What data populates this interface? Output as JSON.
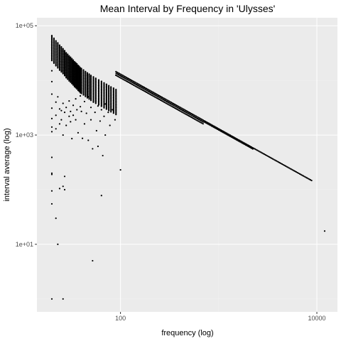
{
  "chart_data": {
    "type": "scatter",
    "title": "Mean Interval by Frequency in 'Ulysses'",
    "xlabel": "frequency (log)",
    "ylabel": "interval average (log)",
    "xscale": "log10",
    "yscale": "log10",
    "xlim": [
      14.1,
      16200
    ],
    "ylim": [
      0.58,
      140000
    ],
    "x_ticks": [
      {
        "value": 100,
        "label": "100"
      },
      {
        "value": 10000,
        "label": "10000"
      }
    ],
    "y_ticks": [
      {
        "value": 10,
        "label": "1e+01"
      },
      {
        "value": 1000,
        "label": "1e+03"
      },
      {
        "value": 100000,
        "label": "1e+05"
      }
    ],
    "grid": true,
    "legend": "none",
    "point_color": "#000000",
    "panel_color": "#EBEBEB",
    "frequency_columns": {
      "x": [
        20,
        21,
        22,
        23,
        24,
        25,
        26,
        27,
        28,
        29,
        30,
        31,
        32,
        33,
        34,
        35,
        36,
        37,
        38,
        39,
        40,
        42,
        44,
        46,
        48,
        50,
        53,
        56,
        60,
        64,
        68,
        72,
        76,
        80,
        85,
        90
      ],
      "ymax": [
        66000,
        59000,
        53000,
        48500,
        44000,
        41000,
        38000,
        35000,
        32000,
        30000,
        28000,
        26500,
        25000,
        23500,
        22000,
        21000,
        20000,
        18800,
        18000,
        17000,
        16500,
        15500,
        14500,
        13700,
        13000,
        12300,
        11600,
        10900,
        10200,
        9600,
        9000,
        8500,
        8000,
        7600,
        7200,
        6800
      ]
    },
    "points": [
      {
        "x": 20,
        "y": 1150
      },
      {
        "x": 20,
        "y": 1400
      },
      {
        "x": 20,
        "y": 2000
      },
      {
        "x": 20,
        "y": 3100
      },
      {
        "x": 20,
        "y": 5600
      },
      {
        "x": 20,
        "y": 9500
      },
      {
        "x": 20,
        "y": 15000
      },
      {
        "x": 20,
        "y": 390
      },
      {
        "x": 20,
        "y": 200
      },
      {
        "x": 20,
        "y": 190
      },
      {
        "x": 20,
        "y": 95
      },
      {
        "x": 20,
        "y": 55
      },
      {
        "x": 20,
        "y": 1
      },
      {
        "x": 22,
        "y": 1300
      },
      {
        "x": 22,
        "y": 2300
      },
      {
        "x": 22,
        "y": 4000
      },
      {
        "x": 22,
        "y": 30
      },
      {
        "x": 23,
        "y": 10
      },
      {
        "x": 23,
        "y": 5000
      },
      {
        "x": 24,
        "y": 1600
      },
      {
        "x": 24,
        "y": 3000
      },
      {
        "x": 24,
        "y": 105
      },
      {
        "x": 25,
        "y": 2800
      },
      {
        "x": 25,
        "y": 1900
      },
      {
        "x": 26,
        "y": 1000
      },
      {
        "x": 26,
        "y": 3800
      },
      {
        "x": 26,
        "y": 115
      },
      {
        "x": 26,
        "y": 1
      },
      {
        "x": 27,
        "y": 2600
      },
      {
        "x": 27,
        "y": 175
      },
      {
        "x": 27,
        "y": 100
      },
      {
        "x": 28,
        "y": 1500
      },
      {
        "x": 28,
        "y": 3200
      },
      {
        "x": 30,
        "y": 2200
      },
      {
        "x": 30,
        "y": 4200
      },
      {
        "x": 31,
        "y": 2700
      },
      {
        "x": 31,
        "y": 1750
      },
      {
        "x": 32,
        "y": 860
      },
      {
        "x": 33,
        "y": 3500
      },
      {
        "x": 33,
        "y": 2300
      },
      {
        "x": 35,
        "y": 1900
      },
      {
        "x": 35,
        "y": 4600
      },
      {
        "x": 36,
        "y": 2900
      },
      {
        "x": 37,
        "y": 1100
      },
      {
        "x": 39,
        "y": 3300
      },
      {
        "x": 39,
        "y": 5200
      },
      {
        "x": 40,
        "y": 2700
      },
      {
        "x": 41,
        "y": 870
      },
      {
        "x": 43,
        "y": 1600
      },
      {
        "x": 43,
        "y": 4100
      },
      {
        "x": 45,
        "y": 2500
      },
      {
        "x": 47,
        "y": 800
      },
      {
        "x": 47,
        "y": 5000
      },
      {
        "x": 50,
        "y": 3200
      },
      {
        "x": 50,
        "y": 1900
      },
      {
        "x": 52,
        "y": 5
      },
      {
        "x": 52,
        "y": 560
      },
      {
        "x": 53,
        "y": 4000
      },
      {
        "x": 55,
        "y": 2600
      },
      {
        "x": 57,
        "y": 1200
      },
      {
        "x": 59,
        "y": 620
      },
      {
        "x": 59,
        "y": 3400
      },
      {
        "x": 62,
        "y": 1800
      },
      {
        "x": 64,
        "y": 78
      },
      {
        "x": 64,
        "y": 2900
      },
      {
        "x": 66,
        "y": 420
      },
      {
        "x": 68,
        "y": 2200
      },
      {
        "x": 70,
        "y": 1000
      },
      {
        "x": 70,
        "y": 3700
      },
      {
        "x": 75,
        "y": 2600
      },
      {
        "x": 78,
        "y": 1500
      },
      {
        "x": 83,
        "y": 2900
      },
      {
        "x": 88,
        "y": 1900
      },
      {
        "x": 100,
        "y": 230
      },
      {
        "x": 12000,
        "y": 17.5
      }
    ]
  }
}
